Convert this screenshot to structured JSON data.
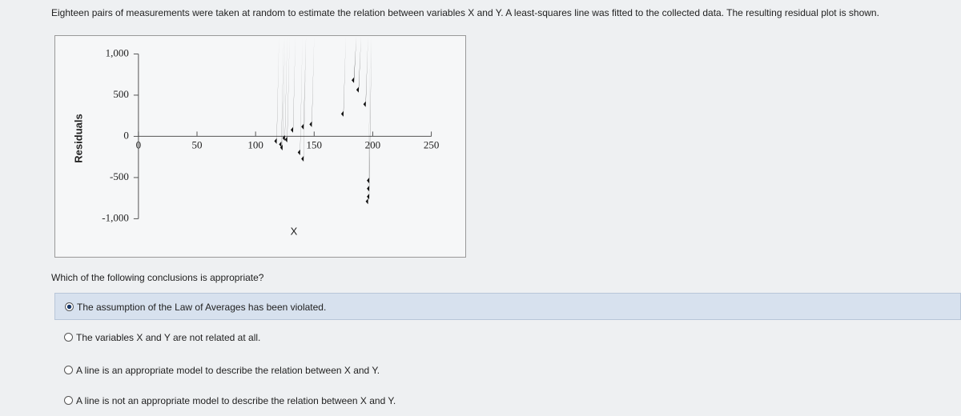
{
  "question": {
    "intro": "Eighteen pairs of measurements were taken at random to estimate the relation between variables X and Y. A least-squares line was fitted to the collected data. The resulting residual plot is shown.",
    "prompt": "Which of the following conclusions is appropriate?",
    "options": [
      "The assumption of the Law of Averages has been violated.",
      "The variables X and Y are not related at all.",
      "A line is an appropriate model to describe the relation between X and Y.",
      "A line is not an appropriate model to describe the relation between X and Y."
    ],
    "selected": 0
  },
  "chart_data": {
    "type": "scatter",
    "xlabel": "X",
    "ylabel": "Residuals",
    "color": "#111111",
    "x": [
      184,
      188,
      194,
      175,
      132,
      141,
      148,
      118,
      122,
      125,
      123,
      127,
      138,
      141,
      197,
      197,
      197,
      196
    ],
    "values": [
      682,
      565,
      390,
      273,
      78,
      117,
      146,
      -58,
      -97,
      -20,
      -136,
      -40,
      -195,
      -273,
      -536,
      -634,
      -731,
      -790
    ],
    "xlim": [
      -71,
      279
    ],
    "ylim": [
      -1462,
      1218
    ],
    "xticks": [
      0,
      50,
      100,
      150,
      200,
      250
    ],
    "yticks": [
      {
        "value": 1000,
        "label": "1,000"
      },
      500,
      0,
      -500,
      {
        "value": -1000,
        "label": "-1,000"
      }
    ]
  }
}
